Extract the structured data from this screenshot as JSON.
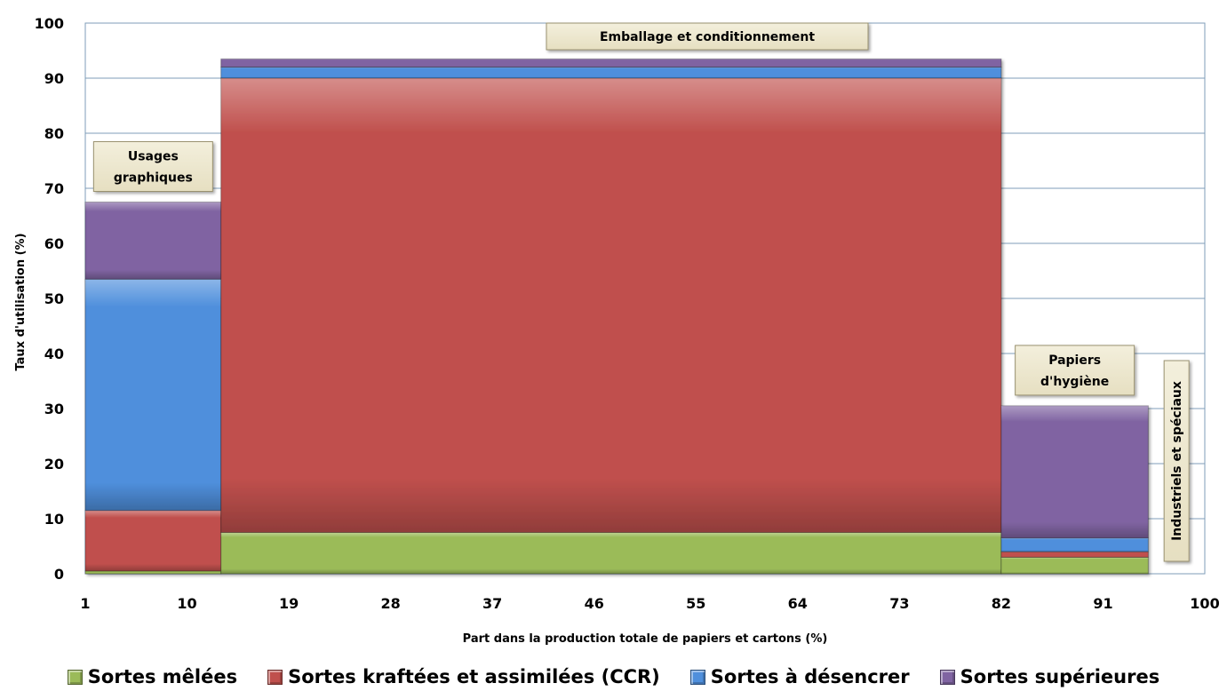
{
  "chart_data": {
    "type": "bar",
    "variant": "variable-width stacked (marimekko)",
    "title": "",
    "xlabel": "Part dans la production totale de papiers et cartons (%)",
    "ylabel": "Taux d'utilisation (%)",
    "xlim": [
      1,
      100
    ],
    "ylim": [
      0,
      100
    ],
    "x_ticks": [
      "1",
      "10",
      "19",
      "28",
      "37",
      "46",
      "55",
      "64",
      "73",
      "82",
      "91",
      "100"
    ],
    "y_ticks": [
      "0",
      "10",
      "20",
      "30",
      "40",
      "50",
      "60",
      "70",
      "80",
      "90",
      "100"
    ],
    "grid": "horizontal",
    "legend_position": "bottom",
    "categories": [
      {
        "name": "Usages graphiques",
        "x_start": 1,
        "x_end": 13,
        "label_orientation": "horizontal"
      },
      {
        "name": "Emballage et conditionnement",
        "x_start": 13,
        "x_end": 82,
        "label_orientation": "horizontal"
      },
      {
        "name": "Papiers d'hygiène",
        "x_start": 82,
        "x_end": 95,
        "label_orientation": "horizontal"
      },
      {
        "name": "Industriels et spéciaux",
        "x_start": 95,
        "x_end": 100,
        "label_orientation": "vertical"
      }
    ],
    "series": [
      {
        "name": "Sortes mêlées",
        "color": "#9bbb59",
        "values": [
          0.5,
          7.5,
          3,
          0
        ]
      },
      {
        "name": "Sortes kraftées et assimilées (CCR)",
        "color": "#c0504d",
        "values": [
          11,
          82.5,
          1,
          0
        ]
      },
      {
        "name": "Sortes à désencrer",
        "color": "#4f8fdc",
        "values": [
          42,
          2,
          2.5,
          0
        ]
      },
      {
        "name": "Sortes supérieures",
        "color": "#8064a2",
        "values": [
          14,
          1.5,
          24,
          0
        ]
      }
    ]
  }
}
